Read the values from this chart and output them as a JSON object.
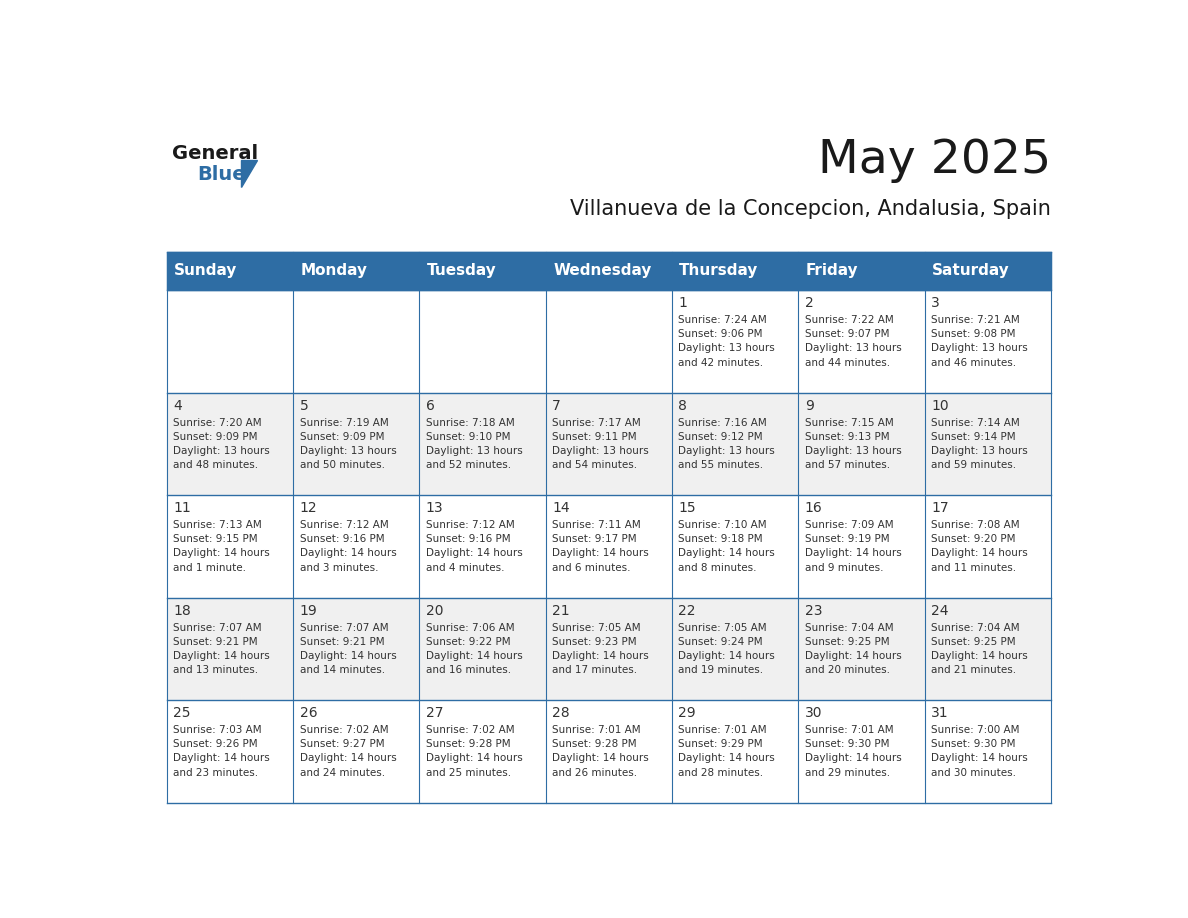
{
  "title": "May 2025",
  "subtitle": "Villanueva de la Concepcion, Andalusia, Spain",
  "header_bg_color": "#2E6DA4",
  "header_text_color": "#FFFFFF",
  "weekdays": [
    "Sunday",
    "Monday",
    "Tuesday",
    "Wednesday",
    "Thursday",
    "Friday",
    "Saturday"
  ],
  "row_colors": [
    "#FFFFFF",
    "#F0F0F0"
  ],
  "cell_border_color": "#2E6DA4",
  "text_color": "#333333",
  "days": [
    {
      "day": 1,
      "col": 4,
      "row": 0,
      "sunrise": "7:24 AM",
      "sunset": "9:06 PM",
      "daylight": "13 hours and 42 minutes."
    },
    {
      "day": 2,
      "col": 5,
      "row": 0,
      "sunrise": "7:22 AM",
      "sunset": "9:07 PM",
      "daylight": "13 hours and 44 minutes."
    },
    {
      "day": 3,
      "col": 6,
      "row": 0,
      "sunrise": "7:21 AM",
      "sunset": "9:08 PM",
      "daylight": "13 hours and 46 minutes."
    },
    {
      "day": 4,
      "col": 0,
      "row": 1,
      "sunrise": "7:20 AM",
      "sunset": "9:09 PM",
      "daylight": "13 hours and 48 minutes."
    },
    {
      "day": 5,
      "col": 1,
      "row": 1,
      "sunrise": "7:19 AM",
      "sunset": "9:09 PM",
      "daylight": "13 hours and 50 minutes."
    },
    {
      "day": 6,
      "col": 2,
      "row": 1,
      "sunrise": "7:18 AM",
      "sunset": "9:10 PM",
      "daylight": "13 hours and 52 minutes."
    },
    {
      "day": 7,
      "col": 3,
      "row": 1,
      "sunrise": "7:17 AM",
      "sunset": "9:11 PM",
      "daylight": "13 hours and 54 minutes."
    },
    {
      "day": 8,
      "col": 4,
      "row": 1,
      "sunrise": "7:16 AM",
      "sunset": "9:12 PM",
      "daylight": "13 hours and 55 minutes."
    },
    {
      "day": 9,
      "col": 5,
      "row": 1,
      "sunrise": "7:15 AM",
      "sunset": "9:13 PM",
      "daylight": "13 hours and 57 minutes."
    },
    {
      "day": 10,
      "col": 6,
      "row": 1,
      "sunrise": "7:14 AM",
      "sunset": "9:14 PM",
      "daylight": "13 hours and 59 minutes."
    },
    {
      "day": 11,
      "col": 0,
      "row": 2,
      "sunrise": "7:13 AM",
      "sunset": "9:15 PM",
      "daylight": "14 hours and 1 minute."
    },
    {
      "day": 12,
      "col": 1,
      "row": 2,
      "sunrise": "7:12 AM",
      "sunset": "9:16 PM",
      "daylight": "14 hours and 3 minutes."
    },
    {
      "day": 13,
      "col": 2,
      "row": 2,
      "sunrise": "7:12 AM",
      "sunset": "9:16 PM",
      "daylight": "14 hours and 4 minutes."
    },
    {
      "day": 14,
      "col": 3,
      "row": 2,
      "sunrise": "7:11 AM",
      "sunset": "9:17 PM",
      "daylight": "14 hours and 6 minutes."
    },
    {
      "day": 15,
      "col": 4,
      "row": 2,
      "sunrise": "7:10 AM",
      "sunset": "9:18 PM",
      "daylight": "14 hours and 8 minutes."
    },
    {
      "day": 16,
      "col": 5,
      "row": 2,
      "sunrise": "7:09 AM",
      "sunset": "9:19 PM",
      "daylight": "14 hours and 9 minutes."
    },
    {
      "day": 17,
      "col": 6,
      "row": 2,
      "sunrise": "7:08 AM",
      "sunset": "9:20 PM",
      "daylight": "14 hours and 11 minutes."
    },
    {
      "day": 18,
      "col": 0,
      "row": 3,
      "sunrise": "7:07 AM",
      "sunset": "9:21 PM",
      "daylight": "14 hours and 13 minutes."
    },
    {
      "day": 19,
      "col": 1,
      "row": 3,
      "sunrise": "7:07 AM",
      "sunset": "9:21 PM",
      "daylight": "14 hours and 14 minutes."
    },
    {
      "day": 20,
      "col": 2,
      "row": 3,
      "sunrise": "7:06 AM",
      "sunset": "9:22 PM",
      "daylight": "14 hours and 16 minutes."
    },
    {
      "day": 21,
      "col": 3,
      "row": 3,
      "sunrise": "7:05 AM",
      "sunset": "9:23 PM",
      "daylight": "14 hours and 17 minutes."
    },
    {
      "day": 22,
      "col": 4,
      "row": 3,
      "sunrise": "7:05 AM",
      "sunset": "9:24 PM",
      "daylight": "14 hours and 19 minutes."
    },
    {
      "day": 23,
      "col": 5,
      "row": 3,
      "sunrise": "7:04 AM",
      "sunset": "9:25 PM",
      "daylight": "14 hours and 20 minutes."
    },
    {
      "day": 24,
      "col": 6,
      "row": 3,
      "sunrise": "7:04 AM",
      "sunset": "9:25 PM",
      "daylight": "14 hours and 21 minutes."
    },
    {
      "day": 25,
      "col": 0,
      "row": 4,
      "sunrise": "7:03 AM",
      "sunset": "9:26 PM",
      "daylight": "14 hours and 23 minutes."
    },
    {
      "day": 26,
      "col": 1,
      "row": 4,
      "sunrise": "7:02 AM",
      "sunset": "9:27 PM",
      "daylight": "14 hours and 24 minutes."
    },
    {
      "day": 27,
      "col": 2,
      "row": 4,
      "sunrise": "7:02 AM",
      "sunset": "9:28 PM",
      "daylight": "14 hours and 25 minutes."
    },
    {
      "day": 28,
      "col": 3,
      "row": 4,
      "sunrise": "7:01 AM",
      "sunset": "9:28 PM",
      "daylight": "14 hours and 26 minutes."
    },
    {
      "day": 29,
      "col": 4,
      "row": 4,
      "sunrise": "7:01 AM",
      "sunset": "9:29 PM",
      "daylight": "14 hours and 28 minutes."
    },
    {
      "day": 30,
      "col": 5,
      "row": 4,
      "sunrise": "7:01 AM",
      "sunset": "9:30 PM",
      "daylight": "14 hours and 29 minutes."
    },
    {
      "day": 31,
      "col": 6,
      "row": 4,
      "sunrise": "7:00 AM",
      "sunset": "9:30 PM",
      "daylight": "14 hours and 30 minutes."
    }
  ],
  "logo_text_general": "General",
  "logo_text_blue": "Blue",
  "logo_color_general": "#1a1a1a",
  "logo_color_blue": "#2E6DA4",
  "logo_triangle_color": "#2E6DA4"
}
